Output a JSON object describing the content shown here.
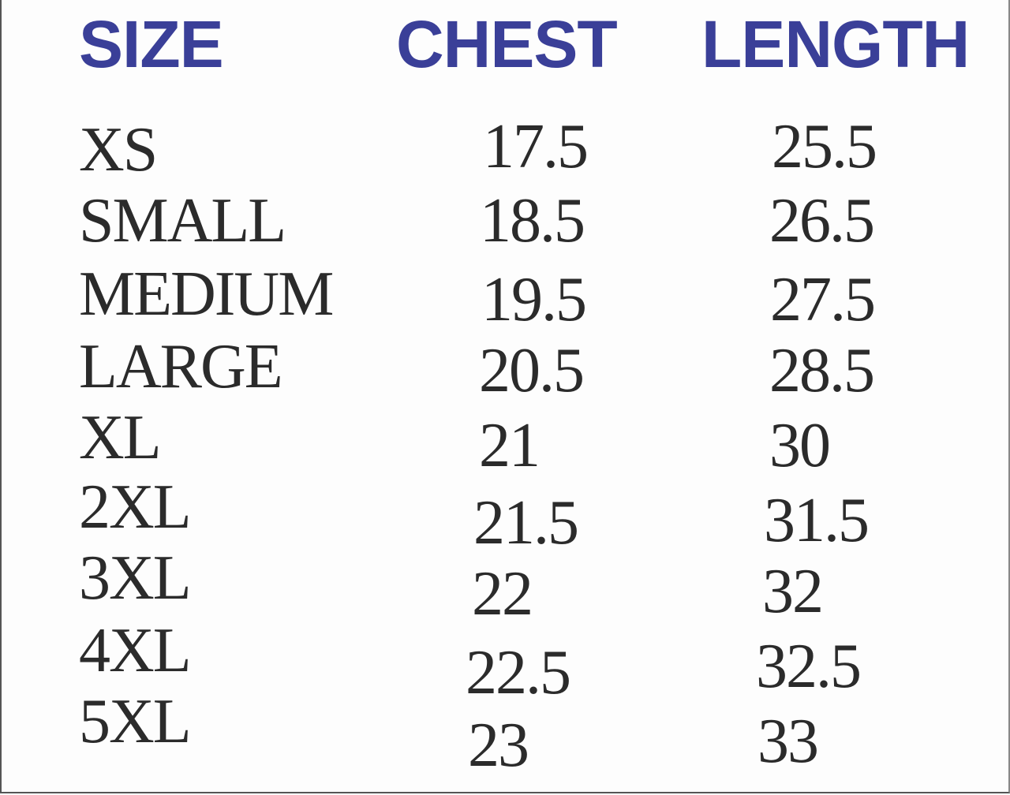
{
  "table": {
    "headers": [
      "SIZE",
      "CHEST",
      "LENGTH"
    ],
    "header_color": "#3a3f98",
    "rows": [
      {
        "size": "XS",
        "chest": "17.5",
        "length": "25.5"
      },
      {
        "size": "SMALL",
        "chest": "18.5",
        "length": "26.5"
      },
      {
        "size": "MEDIUM",
        "chest": "19.5",
        "length": "27.5"
      },
      {
        "size": "LARGE",
        "chest": "20.5",
        "length": "28.5"
      },
      {
        "size": "XL",
        "chest": "21",
        "length": "30"
      },
      {
        "size": "2XL",
        "chest": "21.5",
        "length": "31.5"
      },
      {
        "size": "3XL",
        "chest": "22",
        "length": "32"
      },
      {
        "size": "4XL",
        "chest": "22.5",
        "length": "32.5"
      },
      {
        "size": "5XL",
        "chest": "23",
        "length": "33"
      }
    ]
  }
}
